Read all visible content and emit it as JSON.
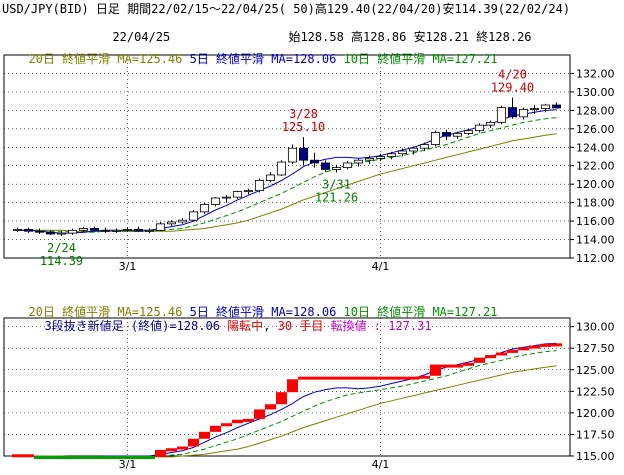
{
  "header": {
    "line1": "USD/JPY(BID) 日足 期間22/02/15～22/04/25( 50)高129.40(22/04/20)安114.39(22/02/24)",
    "date": "22/04/25",
    "ohlc": "始128.58 高128.86 安128.21 終128.26"
  },
  "colors": {
    "ma20": "#808000",
    "ma5": "#0000c8",
    "ma10": "#009000",
    "up_candle": "#ffffff",
    "down_candle": "#00008b",
    "annotation_high": "#d00000",
    "annotation_low": "#008000",
    "kagi_up": "#ff0000",
    "kagi_down": "#00a000",
    "status_red": "#e00000",
    "status_purple": "#c000c0"
  },
  "top_panel": {
    "legend": {
      "ma20": "20日 終値平滑 MA=125.46",
      "ma5": "5日 終値平滑 MA=128.06",
      "ma10": "10日 終値平滑 MA=127.21"
    }
  },
  "bottom_panel": {
    "legend": {
      "ma20": "20日 終値平滑 MA=125.46",
      "ma5": "5日 終値平滑 MA=128.06",
      "ma10": "10日 終値平滑 MA=127.21"
    },
    "status": {
      "label": "3段抜き新値足 (終値)=128.06",
      "state": "陽転中",
      "count": "30 手目",
      "turn_label": "転換値 : 127.31"
    }
  },
  "chart_data": [
    {
      "type": "candlestick",
      "title": "",
      "ylim": [
        112,
        134
      ],
      "yticks": [
        "112.00",
        "114.00",
        "116.00",
        "118.00",
        "120.00",
        "122.00",
        "124.00",
        "126.00",
        "128.00",
        "130.00",
        "132.00"
      ],
      "xticks": [
        {
          "index": 10,
          "label": "3/1"
        },
        {
          "index": 33,
          "label": "4/1"
        }
      ],
      "candles": [
        {
          "o": 115.0,
          "h": 115.3,
          "l": 114.8,
          "c": 115.1
        },
        {
          "o": 115.1,
          "h": 115.3,
          "l": 114.7,
          "c": 114.9
        },
        {
          "o": 114.9,
          "h": 115.2,
          "l": 114.6,
          "c": 114.8
        },
        {
          "o": 114.8,
          "h": 115.0,
          "l": 114.5,
          "c": 114.6
        },
        {
          "o": 114.6,
          "h": 114.9,
          "l": 114.39,
          "c": 114.7
        },
        {
          "o": 114.7,
          "h": 115.2,
          "l": 114.5,
          "c": 115.0
        },
        {
          "o": 115.0,
          "h": 115.4,
          "l": 114.8,
          "c": 115.2
        },
        {
          "o": 115.2,
          "h": 115.4,
          "l": 114.9,
          "c": 115.0
        },
        {
          "o": 115.0,
          "h": 115.3,
          "l": 114.7,
          "c": 114.9
        },
        {
          "o": 114.9,
          "h": 115.2,
          "l": 114.7,
          "c": 115.0
        },
        {
          "o": 115.0,
          "h": 115.3,
          "l": 114.8,
          "c": 115.1
        },
        {
          "o": 115.1,
          "h": 115.4,
          "l": 114.8,
          "c": 114.9
        },
        {
          "o": 114.9,
          "h": 115.2,
          "l": 114.7,
          "c": 115.0
        },
        {
          "o": 115.0,
          "h": 115.9,
          "l": 114.9,
          "c": 115.7
        },
        {
          "o": 115.7,
          "h": 116.1,
          "l": 115.5,
          "c": 115.9
        },
        {
          "o": 115.9,
          "h": 116.3,
          "l": 115.7,
          "c": 116.1
        },
        {
          "o": 116.1,
          "h": 117.2,
          "l": 116.0,
          "c": 117.0
        },
        {
          "o": 117.0,
          "h": 118.0,
          "l": 116.8,
          "c": 117.8
        },
        {
          "o": 117.8,
          "h": 118.6,
          "l": 117.6,
          "c": 118.5
        },
        {
          "o": 118.5,
          "h": 118.8,
          "l": 118.0,
          "c": 118.6
        },
        {
          "o": 118.6,
          "h": 119.3,
          "l": 118.4,
          "c": 119.2
        },
        {
          "o": 119.2,
          "h": 119.5,
          "l": 118.9,
          "c": 119.3
        },
        {
          "o": 119.3,
          "h": 120.6,
          "l": 119.1,
          "c": 120.4
        },
        {
          "o": 120.4,
          "h": 121.3,
          "l": 120.2,
          "c": 121.0
        },
        {
          "o": 121.0,
          "h": 122.6,
          "l": 120.9,
          "c": 122.4
        },
        {
          "o": 122.4,
          "h": 124.3,
          "l": 122.2,
          "c": 123.9
        },
        {
          "o": 123.9,
          "h": 125.1,
          "l": 122.0,
          "c": 122.6
        },
        {
          "o": 122.6,
          "h": 123.4,
          "l": 121.8,
          "c": 122.3
        },
        {
          "o": 122.3,
          "h": 122.6,
          "l": 121.3,
          "c": 121.6
        },
        {
          "o": 121.6,
          "h": 122.1,
          "l": 121.26,
          "c": 121.8
        },
        {
          "o": 121.8,
          "h": 122.5,
          "l": 121.6,
          "c": 122.3
        },
        {
          "o": 122.3,
          "h": 122.8,
          "l": 121.9,
          "c": 122.6
        },
        {
          "o": 122.6,
          "h": 123.1,
          "l": 122.2,
          "c": 122.8
        },
        {
          "o": 122.8,
          "h": 123.3,
          "l": 122.5,
          "c": 123.0
        },
        {
          "o": 123.0,
          "h": 123.5,
          "l": 122.7,
          "c": 123.3
        },
        {
          "o": 123.3,
          "h": 123.9,
          "l": 123.0,
          "c": 123.6
        },
        {
          "o": 123.6,
          "h": 124.1,
          "l": 123.2,
          "c": 123.9
        },
        {
          "o": 123.9,
          "h": 124.5,
          "l": 123.6,
          "c": 124.3
        },
        {
          "o": 124.3,
          "h": 125.8,
          "l": 124.1,
          "c": 125.6
        },
        {
          "o": 125.6,
          "h": 125.9,
          "l": 124.8,
          "c": 125.2
        },
        {
          "o": 125.2,
          "h": 125.7,
          "l": 124.9,
          "c": 125.5
        },
        {
          "o": 125.5,
          "h": 126.0,
          "l": 125.3,
          "c": 125.8
        },
        {
          "o": 125.8,
          "h": 126.6,
          "l": 125.6,
          "c": 126.4
        },
        {
          "o": 126.4,
          "h": 126.9,
          "l": 126.1,
          "c": 126.7
        },
        {
          "o": 126.7,
          "h": 128.5,
          "l": 126.5,
          "c": 128.3
        },
        {
          "o": 128.3,
          "h": 129.4,
          "l": 127.1,
          "c": 127.3
        },
        {
          "o": 127.3,
          "h": 128.3,
          "l": 127.0,
          "c": 128.1
        },
        {
          "o": 128.1,
          "h": 128.6,
          "l": 127.6,
          "c": 128.2
        },
        {
          "o": 128.2,
          "h": 128.7,
          "l": 127.8,
          "c": 128.58
        },
        {
          "o": 128.58,
          "h": 128.86,
          "l": 128.21,
          "c": 128.26
        }
      ],
      "ma5": [
        115.0,
        115.0,
        114.9,
        114.8,
        114.7,
        114.7,
        114.8,
        114.9,
        115.0,
        115.0,
        115.0,
        115.0,
        115.0,
        115.2,
        115.4,
        115.6,
        116.0,
        116.6,
        117.2,
        117.7,
        118.3,
        118.8,
        119.3,
        119.8,
        120.4,
        121.1,
        121.9,
        122.4,
        122.7,
        122.9,
        122.9,
        122.8,
        122.9,
        123.1,
        123.4,
        123.7,
        124.0,
        124.4,
        124.9,
        125.3,
        125.6,
        125.9,
        126.2,
        126.5,
        127.0,
        127.4,
        127.6,
        127.8,
        128.0,
        128.06
      ],
      "ma10": [
        115.0,
        115.0,
        115.0,
        114.9,
        114.9,
        114.8,
        114.8,
        114.8,
        114.9,
        114.9,
        114.9,
        114.9,
        114.9,
        115.0,
        115.1,
        115.2,
        115.5,
        115.8,
        116.2,
        116.6,
        117.0,
        117.5,
        118.0,
        118.5,
        119.0,
        119.6,
        120.2,
        120.8,
        121.3,
        121.7,
        122.1,
        122.3,
        122.5,
        122.7,
        122.9,
        123.1,
        123.4,
        123.7,
        124.0,
        124.3,
        124.7,
        125.1,
        125.5,
        125.8,
        126.1,
        126.4,
        126.7,
        126.9,
        127.1,
        127.21
      ],
      "ma20": [
        115.0,
        115.0,
        115.0,
        115.0,
        115.0,
        114.9,
        114.9,
        114.9,
        114.9,
        114.9,
        114.9,
        114.9,
        114.9,
        114.9,
        114.9,
        115.0,
        115.1,
        115.2,
        115.4,
        115.6,
        115.8,
        116.1,
        116.5,
        116.9,
        117.3,
        117.8,
        118.3,
        118.7,
        119.1,
        119.5,
        119.9,
        120.3,
        120.7,
        121.1,
        121.4,
        121.7,
        122.0,
        122.3,
        122.6,
        122.9,
        123.2,
        123.5,
        123.8,
        124.1,
        124.4,
        124.7,
        124.9,
        125.1,
        125.3,
        125.46
      ],
      "annotations": [
        {
          "index": 4,
          "date": "2/24",
          "value": "114.39",
          "kind": "low"
        },
        {
          "index": 26,
          "date": "3/28",
          "value": "125.10",
          "kind": "high"
        },
        {
          "index": 29,
          "date": "3/31",
          "value": "121.26",
          "kind": "low"
        },
        {
          "index": 45,
          "date": "4/20",
          "value": "129.40",
          "kind": "high"
        }
      ]
    },
    {
      "type": "bar",
      "title": "",
      "ylim": [
        115,
        131
      ],
      "yticks": [
        "115.00",
        "117.50",
        "120.00",
        "122.50",
        "125.00",
        "127.50",
        "130.00"
      ],
      "xticks": [
        {
          "index": 10,
          "label": "3/1"
        },
        {
          "index": 33,
          "label": "4/1"
        }
      ],
      "bricks": [
        {
          "from": 115.0,
          "to": 115.2,
          "dir": "up"
        },
        {
          "from": 115.0,
          "to": 115.2,
          "dir": "up"
        },
        {
          "from": 114.8,
          "to": 115.0,
          "dir": "down"
        },
        {
          "from": 114.8,
          "to": 115.0,
          "dir": "down"
        },
        {
          "from": 114.8,
          "to": 115.0,
          "dir": "down"
        },
        {
          "from": 114.8,
          "to": 115.0,
          "dir": "down"
        },
        {
          "from": 114.8,
          "to": 115.0,
          "dir": "down"
        },
        {
          "from": 114.8,
          "to": 115.0,
          "dir": "down"
        },
        {
          "from": 114.8,
          "to": 115.0,
          "dir": "down"
        },
        {
          "from": 114.8,
          "to": 115.0,
          "dir": "down"
        },
        {
          "from": 114.8,
          "to": 115.0,
          "dir": "down"
        },
        {
          "from": 114.8,
          "to": 115.0,
          "dir": "down"
        },
        {
          "from": 114.8,
          "to": 115.0,
          "dir": "down"
        },
        {
          "from": 114.9,
          "to": 115.7,
          "dir": "up"
        },
        {
          "from": 115.7,
          "to": 115.9,
          "dir": "up"
        },
        {
          "from": 115.9,
          "to": 116.1,
          "dir": "up"
        },
        {
          "from": 116.1,
          "to": 117.0,
          "dir": "up"
        },
        {
          "from": 117.0,
          "to": 117.8,
          "dir": "up"
        },
        {
          "from": 117.8,
          "to": 118.5,
          "dir": "up"
        },
        {
          "from": 118.5,
          "to": 118.8,
          "dir": "up"
        },
        {
          "from": 118.8,
          "to": 119.2,
          "dir": "up"
        },
        {
          "from": 119.2,
          "to": 119.3,
          "dir": "up"
        },
        {
          "from": 119.3,
          "to": 120.4,
          "dir": "up"
        },
        {
          "from": 120.4,
          "to": 121.0,
          "dir": "up"
        },
        {
          "from": 121.0,
          "to": 122.4,
          "dir": "up"
        },
        {
          "from": 122.4,
          "to": 123.9,
          "dir": "up"
        },
        {
          "from": 123.9,
          "to": 124.2,
          "dir": "up"
        },
        {
          "from": 123.9,
          "to": 124.2,
          "dir": "up"
        },
        {
          "from": 123.9,
          "to": 124.2,
          "dir": "up"
        },
        {
          "from": 123.9,
          "to": 124.2,
          "dir": "up"
        },
        {
          "from": 123.9,
          "to": 124.2,
          "dir": "up"
        },
        {
          "from": 123.9,
          "to": 124.2,
          "dir": "up"
        },
        {
          "from": 123.9,
          "to": 124.2,
          "dir": "up"
        },
        {
          "from": 123.9,
          "to": 124.2,
          "dir": "up"
        },
        {
          "from": 123.9,
          "to": 124.2,
          "dir": "up"
        },
        {
          "from": 123.9,
          "to": 124.2,
          "dir": "up"
        },
        {
          "from": 123.9,
          "to": 124.2,
          "dir": "up"
        },
        {
          "from": 124.2,
          "to": 124.3,
          "dir": "up"
        },
        {
          "from": 124.3,
          "to": 125.6,
          "dir": "up"
        },
        {
          "from": 125.4,
          "to": 125.6,
          "dir": "up"
        },
        {
          "from": 125.4,
          "to": 125.6,
          "dir": "up"
        },
        {
          "from": 125.6,
          "to": 125.8,
          "dir": "up"
        },
        {
          "from": 125.8,
          "to": 126.4,
          "dir": "up"
        },
        {
          "from": 126.4,
          "to": 126.7,
          "dir": "up"
        },
        {
          "from": 126.7,
          "to": 127.0,
          "dir": "up"
        },
        {
          "from": 127.0,
          "to": 127.3,
          "dir": "up"
        },
        {
          "from": 127.3,
          "to": 127.6,
          "dir": "up"
        },
        {
          "from": 127.6,
          "to": 127.8,
          "dir": "up"
        },
        {
          "from": 127.8,
          "to": 128.0,
          "dir": "up"
        },
        {
          "from": 127.9,
          "to": 128.06,
          "dir": "up"
        }
      ],
      "ma5": [
        115.0,
        115.0,
        114.9,
        114.8,
        114.7,
        114.7,
        114.8,
        114.9,
        115.0,
        115.0,
        115.0,
        115.0,
        115.0,
        115.2,
        115.4,
        115.6,
        116.0,
        116.6,
        117.2,
        117.7,
        118.3,
        118.8,
        119.3,
        119.8,
        120.4,
        121.1,
        121.9,
        122.4,
        122.7,
        122.9,
        122.9,
        122.8,
        122.9,
        123.1,
        123.4,
        123.7,
        124.0,
        124.4,
        124.9,
        125.3,
        125.6,
        125.9,
        126.2,
        126.5,
        127.0,
        127.4,
        127.6,
        127.8,
        128.0,
        128.06
      ],
      "ma10": [
        115.0,
        115.0,
        115.0,
        114.9,
        114.9,
        114.8,
        114.8,
        114.8,
        114.9,
        114.9,
        114.9,
        114.9,
        114.9,
        115.0,
        115.1,
        115.2,
        115.5,
        115.8,
        116.2,
        116.6,
        117.0,
        117.5,
        118.0,
        118.5,
        119.0,
        119.6,
        120.2,
        120.8,
        121.3,
        121.7,
        122.1,
        122.3,
        122.5,
        122.7,
        122.9,
        123.1,
        123.4,
        123.7,
        124.0,
        124.3,
        124.7,
        125.1,
        125.5,
        125.8,
        126.1,
        126.4,
        126.7,
        126.9,
        127.1,
        127.21
      ],
      "ma20": [
        115.0,
        115.0,
        115.0,
        115.0,
        115.0,
        114.9,
        114.9,
        114.9,
        114.9,
        114.9,
        114.9,
        114.9,
        114.9,
        114.9,
        114.9,
        115.0,
        115.1,
        115.2,
        115.4,
        115.6,
        115.8,
        116.1,
        116.5,
        116.9,
        117.3,
        117.8,
        118.3,
        118.7,
        119.1,
        119.5,
        119.9,
        120.3,
        120.7,
        121.1,
        121.4,
        121.7,
        122.0,
        122.3,
        122.6,
        122.9,
        123.2,
        123.5,
        123.8,
        124.1,
        124.4,
        124.7,
        124.9,
        125.1,
        125.3,
        125.46
      ]
    }
  ]
}
